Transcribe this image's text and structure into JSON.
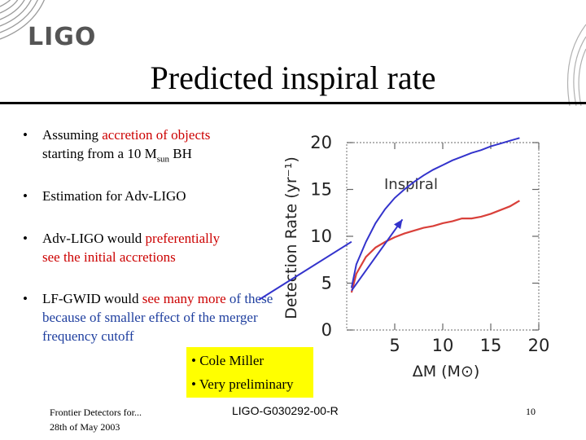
{
  "header": {
    "logo_text": "LIGO"
  },
  "slide": {
    "title": "Predicted inspiral rate"
  },
  "bullets": [
    {
      "parts": [
        {
          "text": "Assuming ",
          "color": "black"
        },
        {
          "text": "accretion of objects",
          "color": "red"
        },
        {
          "text": " starting from a 10 M",
          "color": "black"
        },
        {
          "text": "sun",
          "color": "black",
          "sub": true
        },
        {
          "text": "  BH",
          "color": "black"
        }
      ]
    },
    {
      "parts": [
        {
          "text": "Estimation for Adv-LIGO",
          "color": "black"
        }
      ]
    },
    {
      "parts": [
        {
          "text": "Adv-LIGO would ",
          "color": "black"
        },
        {
          "text": "preferentially",
          "color": "red"
        },
        {
          "text": " see the initial accretions",
          "color": "red"
        }
      ]
    },
    {
      "parts": [
        {
          "text": "LF-GWID would ",
          "color": "black"
        },
        {
          "text": "see many more",
          "color": "red"
        },
        {
          "text": " of these  because of smaller effect of the merger frequency cutoff",
          "color": "blue"
        }
      ]
    }
  ],
  "note": {
    "lines": [
      "• Cole Miller",
      "• Very preliminary"
    ]
  },
  "footer": {
    "left_line1": "Frontier Detectors for...",
    "left_line2": "28th of May 2003",
    "center": "LIGO-G030292-00-R",
    "page": "10"
  },
  "chart_data": {
    "type": "line",
    "ylabel": "Detection Rate (yr⁻¹)",
    "xlabel": "ΔM (M⊙)",
    "annotation": "Inspiral",
    "xlim": [
      0,
      20
    ],
    "ylim": [
      0,
      20
    ],
    "xticks": [
      "5",
      "10",
      "15",
      "20"
    ],
    "yticks": [
      "0",
      "5",
      "10",
      "15",
      "20"
    ],
    "series": [
      {
        "name": "Inspiral",
        "color": "#d9403a",
        "x": [
          0.5,
          1,
          2,
          3,
          4,
          5,
          6,
          7,
          8,
          9,
          10,
          11,
          12,
          13,
          14,
          15,
          16,
          17,
          18
        ],
        "y": [
          4.0,
          6.0,
          7.8,
          8.8,
          9.4,
          9.9,
          10.3,
          10.6,
          10.9,
          11.1,
          11.4,
          11.6,
          11.9,
          11.9,
          12.1,
          12.4,
          12.8,
          13.2,
          13.8
        ]
      }
    ],
    "overlay": {
      "color": "#3333cc",
      "curve": {
        "x": [
          0.5,
          1,
          2,
          3,
          4,
          5,
          6,
          7,
          8,
          9,
          10,
          11,
          12,
          13,
          14,
          15,
          16,
          17,
          18
        ],
        "y": [
          4.5,
          7.0,
          9.4,
          11.4,
          12.9,
          14.1,
          15.0,
          15.8,
          16.5,
          17.1,
          17.6,
          18.1,
          18.5,
          18.9,
          19.2,
          19.6,
          19.9,
          20.2,
          20.5
        ]
      },
      "arrow_from": [
        0.5,
        4.2
      ],
      "arrow_to": [
        5.8,
        11.8
      ],
      "external_line_to_ylevel": 4.2
    }
  }
}
